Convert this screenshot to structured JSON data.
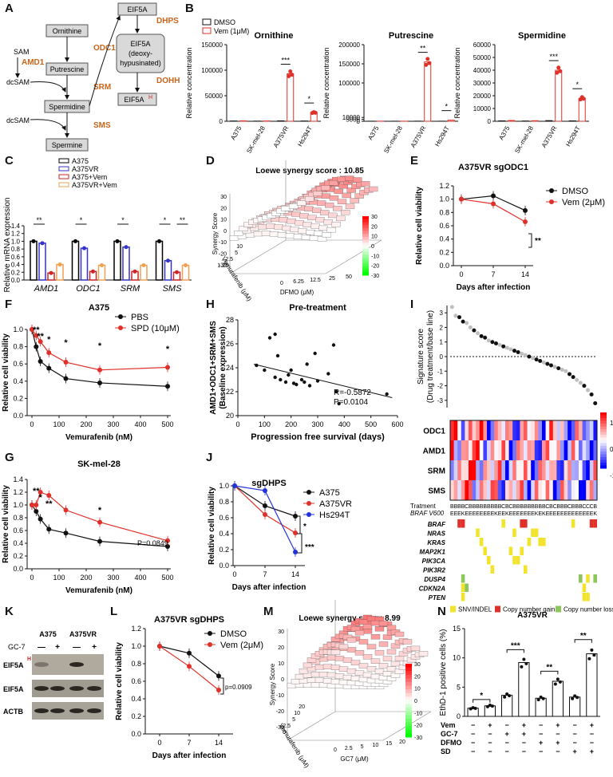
{
  "panels": {
    "A": {
      "label": "A",
      "nodes": {
        "ornithine": "Ornithine",
        "odc1": "ODC1",
        "sam": "SAM",
        "amd1": "AMD1",
        "putrescine": "Putrescine",
        "dcsam1": "dcSAM",
        "srm": "SRM",
        "spermidine": "Spermidine",
        "dcsam2": "dcSAM",
        "sms": "SMS",
        "spermine": "Spermine",
        "eif5a": "EIF5A",
        "dhps": "DHPS",
        "eif5a_deoxy_1": "EIF5A",
        "eif5a_deoxy_2": "(deoxy-",
        "eif5a_deoxy_3": "hypusinated)",
        "dohh": "DOHH",
        "eif5ah": "EIF5A",
        "eif5ah_sup": "H"
      }
    },
    "B": {
      "label": "B",
      "legend": [
        "DMSO",
        "Vem (1μM)"
      ],
      "ylabel": "Relative concentration",
      "categories": [
        "A375",
        "SK-mel-28",
        "A375VR",
        "Hs294T"
      ],
      "charts": [
        {
          "title": "Ornithine",
          "ticks": [
            "0",
            "50000",
            "100000",
            "150000"
          ],
          "dmso": [
            500,
            300,
            800,
            500
          ],
          "vem": [
            800,
            600,
            93000,
            17000
          ],
          "sig": [
            "***",
            "*"
          ]
        },
        {
          "title": "Putrescine",
          "ticks": [
            "0",
            "5000",
            "10000",
            "100000",
            "150000",
            "200000"
          ],
          "dmso": [
            200,
            150,
            300,
            200
          ],
          "vem": [
            300,
            200,
            155000,
            2800
          ],
          "sig": [
            "**",
            "*"
          ]
        },
        {
          "title": "Spermidine",
          "ticks": [
            "0",
            "10000",
            "20000",
            "30000",
            "40000",
            "50000",
            "60000"
          ],
          "dmso": [
            300,
            200,
            500,
            300
          ],
          "vem": [
            600,
            400,
            40000,
            18000
          ],
          "sig": [
            "***",
            "*"
          ]
        }
      ]
    },
    "C": {
      "label": "C",
      "ylabel": "Relative mRNA expression",
      "legend": [
        "A375",
        "A375VR",
        "A375+Vem",
        "A375VR+Vem"
      ],
      "colors": [
        "#000000",
        "#3333cc",
        "#d02424",
        "#f0a050"
      ],
      "genes": [
        "AMD1",
        "ODC1",
        "SRM",
        "SMS"
      ],
      "ticks": [
        "0.0",
        "0.2",
        "0.4",
        "0.6",
        "0.8",
        "1.0",
        "1.2",
        "1.4"
      ],
      "values": [
        [
          1.0,
          0.95,
          0.18,
          0.4
        ],
        [
          1.0,
          0.82,
          0.22,
          0.38
        ],
        [
          1.0,
          0.85,
          0.22,
          0.38
        ],
        [
          1.0,
          0.5,
          0.2,
          0.38
        ]
      ],
      "sig": [
        [
          "**"
        ],
        [
          "*"
        ],
        [
          "*"
        ],
        [
          "*",
          "**"
        ]
      ]
    },
    "D": {
      "label": "D",
      "title": "Loewe synergy score : 10.85",
      "zlabel": "Synergy Score",
      "xlabel": "DFMO (μM)",
      "ylabel": "Vemurafenib (μM)",
      "xticks": [
        "0",
        "6.25",
        "12.5",
        "25",
        "50"
      ],
      "yticks": [
        "1.25",
        "2.5",
        "5",
        "10"
      ],
      "zticks": [
        "30",
        "20",
        "10",
        "0",
        "-10",
        "-20",
        "-30"
      ],
      "scale": [
        "30",
        "20",
        "10",
        "0",
        "-10",
        "-20",
        "-30"
      ]
    },
    "E": {
      "label": "E",
      "title": "A375VR sgODC1",
      "ylabel": "Relative cell viability",
      "xlabel": "Days after infection",
      "xticks": [
        "0",
        "7",
        "14"
      ],
      "yticks": [
        "0.0",
        "0.2",
        "0.4",
        "0.6",
        "0.8",
        "1.0",
        "1.2"
      ],
      "series": [
        {
          "name": "DMSO",
          "values": [
            1.0,
            1.05,
            0.83
          ]
        },
        {
          "name": "Vem (2μM)",
          "values": [
            1.0,
            0.93,
            0.66
          ]
        }
      ],
      "sig": "**"
    },
    "F": {
      "label": "F",
      "title": "A375",
      "ylabel": "Relative cell viability",
      "xlabel": "Vemurafenib (nM)",
      "xticks": [
        "0",
        "100",
        "200",
        "300",
        "400",
        "500"
      ],
      "yticks": [
        "0.0",
        "0.2",
        "0.4",
        "0.6",
        "0.8",
        "1.0"
      ],
      "x": [
        0,
        15.6,
        31.25,
        62.5,
        125,
        250,
        500
      ],
      "series": [
        {
          "name": "PBS",
          "values": [
            1.0,
            0.8,
            0.63,
            0.55,
            0.43,
            0.38,
            0.34
          ]
        },
        {
          "name": "SPD (10μM)",
          "values": [
            1.0,
            0.93,
            0.86,
            0.73,
            0.62,
            0.53,
            0.56
          ]
        }
      ],
      "sig": [
        "**",
        "**",
        "*",
        "*",
        "*",
        "*"
      ]
    },
    "G": {
      "label": "G",
      "title": "SK-mel-28",
      "ylabel": "Relative cell viability",
      "xlabel": "Vemurafenib (nM)",
      "xticks": [
        "0",
        "100",
        "200",
        "300",
        "400",
        "500"
      ],
      "yticks": [
        "0.0",
        "0.2",
        "0.4",
        "0.6",
        "0.8",
        "1.0",
        "1.2",
        "1.4"
      ],
      "x": [
        0,
        15.6,
        31.25,
        62.5,
        125,
        250,
        500
      ],
      "series": [
        {
          "name": "PBS",
          "values": [
            1.0,
            0.9,
            0.78,
            0.62,
            0.56,
            0.43,
            0.35
          ]
        },
        {
          "name": "SPD",
          "values": [
            1.0,
            1.0,
            1.2,
            1.15,
            0.92,
            0.73,
            0.44
          ]
        }
      ],
      "sig": [
        "**",
        "*",
        "**",
        "*"
      ],
      "pnote": "P=0.0849"
    },
    "H": {
      "label": "H",
      "title": "Pre-treatment",
      "ylabel1": "AMD1+ODC1+SRM+SMS",
      "ylabel2": "(Baseline expression)",
      "xlabel": "Progression free survival (days)",
      "xticks": [
        "0",
        "100",
        "200",
        "300",
        "400",
        "500",
        "600"
      ],
      "yticks": [
        "20",
        "22",
        "24",
        "26",
        "28"
      ],
      "r": "R=-0.5872",
      "p": "P=0.0104",
      "points": [
        [
          70,
          24.2
        ],
        [
          100,
          23.8
        ],
        [
          120,
          26.5
        ],
        [
          140,
          26.8
        ],
        [
          150,
          25.0
        ],
        [
          160,
          23.0
        ],
        [
          180,
          22.8
        ],
        [
          190,
          23.4
        ],
        [
          210,
          22.7
        ],
        [
          220,
          22.6
        ],
        [
          240,
          23.0
        ],
        [
          250,
          22.8
        ],
        [
          260,
          24.3
        ],
        [
          270,
          22.5
        ],
        [
          290,
          25.2
        ],
        [
          300,
          22.9
        ],
        [
          340,
          23.5
        ],
        [
          360,
          25.9
        ],
        [
          370,
          22.0
        ],
        [
          380,
          21.0
        ],
        [
          560,
          21.8
        ],
        [
          140,
          23.2
        ],
        [
          200,
          23.8
        ]
      ]
    },
    "I": {
      "label": "I",
      "ylabel1": "Signature score",
      "ylabel2": "(Drug treatment/base line)",
      "yticks": [
        "3",
        "2",
        "1",
        "0",
        "-1",
        "-2",
        "-3"
      ],
      "rows": [
        "ODC1",
        "AMD1",
        "SRM",
        "SMS"
      ],
      "scale": [
        "1",
        "0",
        "-1"
      ],
      "treatment_label": "Tratment",
      "braf_label": "BRAF V600",
      "treatment": "BBBBCBBBBBBBBBCBCBBBBBBBBBCBCBBBCBBBCCCB",
      "braf": "EEEKEEEEEEEEKEEKEEEEEEEKEKEEEEEEEEEEEEEK",
      "mutations": [
        "BRAF",
        "NRAS",
        "KRAS",
        "MAP2K1",
        "PIK3CA",
        "PIK3R2",
        "DUSP4",
        "CDKN2A",
        "PTEN"
      ],
      "legend": [
        "SNV/INDEL",
        "Copy number gain",
        "Copy number loss"
      ],
      "scores": [
        3.4,
        2.8,
        2.7,
        2.4,
        2.3,
        2.0,
        1.8,
        1.6,
        1.4,
        1.3,
        1.1,
        1.0,
        0.9,
        0.8,
        0.7,
        0.6,
        0.5,
        0.4,
        0.3,
        0.2,
        0.1,
        0.0,
        -0.1,
        -0.2,
        -0.3,
        -0.4,
        -0.5,
        -0.6,
        -0.7,
        -0.8,
        -0.9,
        -1.0,
        -1.2,
        -1.4,
        -1.6,
        -1.8,
        -2.0,
        -2.3,
        -2.6,
        -3.2
      ]
    },
    "J": {
      "label": "J",
      "title": "sgDHPS",
      "ylabel": "Relative cell viability",
      "xlabel": "Days after infection",
      "xticks": [
        "0",
        "7",
        "14"
      ],
      "yticks": [
        "0.0",
        "0.2",
        "0.4",
        "0.6",
        "0.8",
        "1.0"
      ],
      "series": [
        {
          "name": "A375",
          "values": [
            1.0,
            0.75,
            0.62
          ]
        },
        {
          "name": "A375VR",
          "values": [
            1.0,
            0.64,
            0.41
          ]
        },
        {
          "name": "Hs294T",
          "values": [
            1.0,
            0.94,
            0.17
          ]
        }
      ],
      "sig": [
        "*",
        "***"
      ]
    },
    "K": {
      "label": "K",
      "cols": [
        "A375",
        "A375VR"
      ],
      "gc7": "GC-7",
      "signs": [
        "—",
        "+",
        "—",
        "+"
      ],
      "rows": [
        "EIF5A",
        "EIF5A",
        "ACTB"
      ],
      "row0sup": "H"
    },
    "L": {
      "label": "L",
      "title": "A375VR sgDHPS",
      "ylabel": "Relative cell viability",
      "xlabel": "Days after infection",
      "xticks": [
        "0",
        "7",
        "14"
      ],
      "yticks": [
        "0.0",
        "0.2",
        "0.4",
        "0.6",
        "0.8",
        "1.0",
        "1.2"
      ],
      "series": [
        {
          "name": "DMSO",
          "values": [
            1.0,
            0.92,
            0.66
          ]
        },
        {
          "name": "Vem (2μM)",
          "values": [
            1.0,
            0.77,
            0.5
          ]
        }
      ],
      "pnote": "p=0.0909"
    },
    "M": {
      "label": "M",
      "title": "Loewe synergy score: 8.99",
      "zlabel": "Synergy Score",
      "xlabel": "GC7 (μM)",
      "ylabel": "Vemurafenib (μM)",
      "xticks": [
        "0",
        "2.5",
        "5",
        "10",
        "15",
        "20"
      ],
      "yticks": [
        "0",
        "2.5",
        "5",
        "10",
        "20"
      ],
      "zticks": [
        "30",
        "20",
        "10",
        "0",
        "-10",
        "-20",
        "-30"
      ],
      "scale": [
        "30",
        "20",
        "10",
        "0",
        "-10",
        "-20",
        "-30"
      ]
    },
    "N": {
      "label": "N",
      "title": "A375VR",
      "ylabel": "EthD-1 positive cells (%)",
      "yticks": [
        "0",
        "5",
        "10",
        "15"
      ],
      "values": [
        1.4,
        1.8,
        3.6,
        9.2,
        3.1,
        6.0,
        3.3,
        10.7
      ],
      "sig": [
        "*",
        "***",
        "**",
        "**"
      ],
      "conditions": [
        {
          "name": "Vem",
          "signs": [
            "−",
            "+",
            "−",
            "+",
            "−",
            "+",
            "−",
            "+"
          ]
        },
        {
          "name": "GC-7",
          "signs": [
            "−",
            "−",
            "+",
            "+",
            "−",
            "−",
            "−",
            "−"
          ]
        },
        {
          "name": "DFMO",
          "signs": [
            "−",
            "−",
            "−",
            "−",
            "+",
            "+",
            "−",
            "−"
          ]
        },
        {
          "name": "SD",
          "signs": [
            "−",
            "−",
            "−",
            "−",
            "−",
            "−",
            "+",
            "+"
          ]
        }
      ]
    }
  },
  "colors": {
    "black": "#111111",
    "red": "#e0302a",
    "blue": "#2233dd",
    "orange": "#f39c3c",
    "gray": "#bfbfbf"
  }
}
